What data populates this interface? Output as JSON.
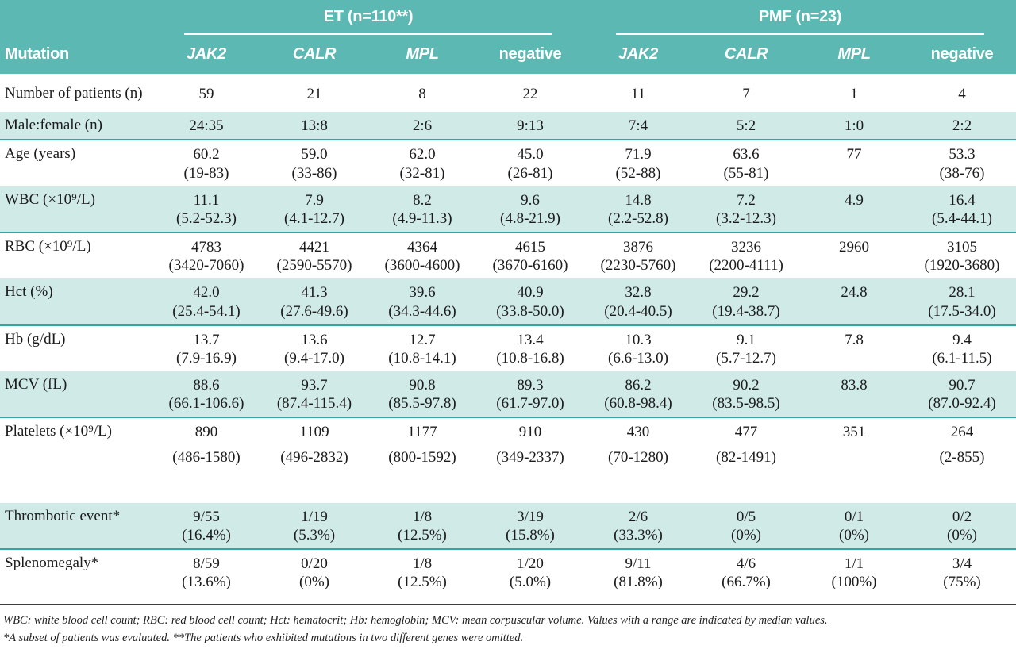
{
  "table": {
    "groups": [
      {
        "label": "ET (n=110**)"
      },
      {
        "label": "PMF (n=23)"
      }
    ],
    "columns": {
      "row_header": "Mutation",
      "sub": [
        {
          "label": "JAK2",
          "italic": true
        },
        {
          "label": "CALR",
          "italic": true
        },
        {
          "label": "MPL",
          "italic": true
        },
        {
          "label": "negative",
          "italic": false
        },
        {
          "label": "JAK2",
          "italic": true
        },
        {
          "label": "CALR",
          "italic": true
        },
        {
          "label": "MPL",
          "italic": true
        },
        {
          "label": "negative",
          "italic": false
        }
      ]
    },
    "rows": [
      {
        "label": "Number of patients (n)",
        "shaded": false,
        "cells": [
          [
            "59"
          ],
          [
            "21"
          ],
          [
            "8"
          ],
          [
            "22"
          ],
          [
            "11"
          ],
          [
            "7"
          ],
          [
            "1"
          ],
          [
            "4"
          ]
        ]
      },
      {
        "label": "Male:female (n)",
        "shaded": true,
        "cells": [
          [
            "24:35"
          ],
          [
            "13:8"
          ],
          [
            "2:6"
          ],
          [
            "9:13"
          ],
          [
            "7:4"
          ],
          [
            "5:2"
          ],
          [
            "1:0"
          ],
          [
            "2:2"
          ]
        ]
      },
      {
        "label": "Age (years)",
        "shaded": false,
        "cells": [
          [
            "60.2",
            "(19-83)"
          ],
          [
            "59.0",
            "(33-86)"
          ],
          [
            "62.0",
            "(32-81)"
          ],
          [
            "45.0",
            "(26-81)"
          ],
          [
            "71.9",
            "(52-88)"
          ],
          [
            "63.6",
            "(55-81)"
          ],
          [
            "77"
          ],
          [
            "53.3",
            "(38-76)"
          ]
        ]
      },
      {
        "label": "WBC (×10⁹/L)",
        "shaded": true,
        "cells": [
          [
            "11.1",
            "(5.2-52.3)"
          ],
          [
            "7.9",
            "(4.1-12.7)"
          ],
          [
            "8.2",
            "(4.9-11.3)"
          ],
          [
            "9.6",
            "(4.8-21.9)"
          ],
          [
            "14.8",
            "(2.2-52.8)"
          ],
          [
            "7.2",
            "(3.2-12.3)"
          ],
          [
            "4.9"
          ],
          [
            "16.4",
            "(5.4-44.1)"
          ]
        ]
      },
      {
        "label": "RBC (×10⁹/L)",
        "shaded": false,
        "cells": [
          [
            "4783",
            "(3420-7060)"
          ],
          [
            "4421",
            "(2590-5570)"
          ],
          [
            "4364",
            "(3600-4600)"
          ],
          [
            "4615",
            "(3670-6160)"
          ],
          [
            "3876",
            "(2230-5760)"
          ],
          [
            "3236",
            "(2200-4111)"
          ],
          [
            "2960"
          ],
          [
            "3105",
            "(1920-3680)"
          ]
        ]
      },
      {
        "label": "Hct (%)",
        "shaded": true,
        "cells": [
          [
            "42.0",
            "(25.4-54.1)"
          ],
          [
            "41.3",
            "(27.6-49.6)"
          ],
          [
            "39.6",
            "(34.3-44.6)"
          ],
          [
            "40.9",
            "(33.8-50.0)"
          ],
          [
            "32.8",
            "(20.4-40.5)"
          ],
          [
            "29.2",
            "(19.4-38.7)"
          ],
          [
            "24.8"
          ],
          [
            "28.1",
            "(17.5-34.0)"
          ]
        ]
      },
      {
        "label": "Hb (g/dL)",
        "shaded": false,
        "cells": [
          [
            "13.7",
            "(7.9-16.9)"
          ],
          [
            "13.6",
            "(9.4-17.0)"
          ],
          [
            "12.7",
            "(10.8-14.1)"
          ],
          [
            "13.4",
            "(10.8-16.8)"
          ],
          [
            "10.3",
            "(6.6-13.0)"
          ],
          [
            "9.1",
            "(5.7-12.7)"
          ],
          [
            "7.8"
          ],
          [
            "9.4",
            "(6.1-11.5)"
          ]
        ]
      },
      {
        "label": "MCV (fL)",
        "shaded": true,
        "cells": [
          [
            "88.6",
            "(66.1-106.6)"
          ],
          [
            "93.7",
            "(87.4-115.4)"
          ],
          [
            "90.8",
            "(85.5-97.8)"
          ],
          [
            "89.3",
            "(61.7-97.0)"
          ],
          [
            "86.2",
            "(60.8-98.4)"
          ],
          [
            "90.2",
            "(83.5-98.5)"
          ],
          [
            "83.8"
          ],
          [
            "90.7",
            "(87.0-92.4)"
          ]
        ]
      },
      {
        "label": "Platelets (×10⁹/L)",
        "shaded": false,
        "tall": true,
        "cells": [
          [
            "890",
            "(486-1580)"
          ],
          [
            "1109",
            "(496-2832)"
          ],
          [
            "1177",
            "(800-1592)"
          ],
          [
            "910",
            "(349-2337)"
          ],
          [
            "430",
            "(70-1280)"
          ],
          [
            "477",
            "(82-1491)"
          ],
          [
            "351"
          ],
          [
            "264",
            "(2-855)"
          ]
        ]
      },
      {
        "label": "Thrombotic event*",
        "shaded": true,
        "cells": [
          [
            "9/55",
            "(16.4%)"
          ],
          [
            "1/19",
            "(5.3%)"
          ],
          [
            "1/8",
            "(12.5%)"
          ],
          [
            "3/19",
            "(15.8%)"
          ],
          [
            "2/6",
            "(33.3%)"
          ],
          [
            "0/5",
            "(0%)"
          ],
          [
            "0/1",
            "(0%)"
          ],
          [
            "0/2",
            "(0%)"
          ]
        ]
      },
      {
        "label": "Splenomegaly*",
        "shaded": false,
        "cells": [
          [
            "8/59",
            "(13.6%)"
          ],
          [
            "0/20",
            "(0%)"
          ],
          [
            "1/8",
            "(12.5%)"
          ],
          [
            "1/20",
            "(5.0%)"
          ],
          [
            "9/11",
            "(81.8%)"
          ],
          [
            "4/6",
            "(66.7%)"
          ],
          [
            "1/1",
            "(100%)"
          ],
          [
            "3/4",
            "(75%)"
          ]
        ]
      }
    ]
  },
  "footnotes": [
    "WBC: white blood cell count; RBC: red blood cell count; Hct: hematocrit; Hb: hemoglobin; MCV: mean corpuscular volume. Values with a range are indicated by median values.",
    "*A subset of patients was evaluated. **The patients who exhibited mutations in two different genes were omitted."
  ],
  "colors": {
    "header_teal": "#5cb8b3",
    "row_stripe": "#d0eae8",
    "stripe_divider": "#2fa7a4",
    "bottom_rule": "#3d3d3d"
  }
}
